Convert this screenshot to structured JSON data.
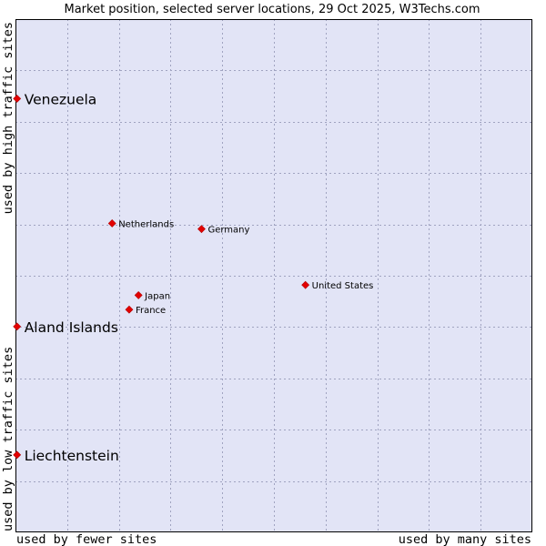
{
  "chart_data": {
    "type": "scatter",
    "title": "Market position, selected server locations, 29 Oct 2025, W3Techs.com",
    "xlabel_left": "used by fewer sites",
    "xlabel_right": "used by many sites",
    "ylabel_bottom": "used by low traffic sites",
    "ylabel_top": "used by high traffic sites",
    "xlim": [
      0,
      100
    ],
    "ylim": [
      0,
      100
    ],
    "grid": true,
    "colors": {
      "plot_bg": "#e2e4f6",
      "grid": "#a0a3c0",
      "point": "#e30000",
      "frame": "#000000"
    },
    "points": [
      {
        "label": "Venezuela",
        "x": 0.3,
        "y": 84.5,
        "size": "large"
      },
      {
        "label": "Netherlands",
        "x": 18.7,
        "y": 60.2,
        "size": "small"
      },
      {
        "label": "Germany",
        "x": 36.0,
        "y": 59.1,
        "size": "small"
      },
      {
        "label": "United States",
        "x": 56.1,
        "y": 48.2,
        "size": "small"
      },
      {
        "label": "Japan",
        "x": 23.8,
        "y": 46.2,
        "size": "small"
      },
      {
        "label": "France",
        "x": 22.0,
        "y": 43.4,
        "size": "small"
      },
      {
        "label": "Aland Islands",
        "x": 0.3,
        "y": 40.1,
        "size": "large"
      },
      {
        "label": "Liechtenstein",
        "x": 0.3,
        "y": 15.1,
        "size": "large"
      }
    ]
  }
}
